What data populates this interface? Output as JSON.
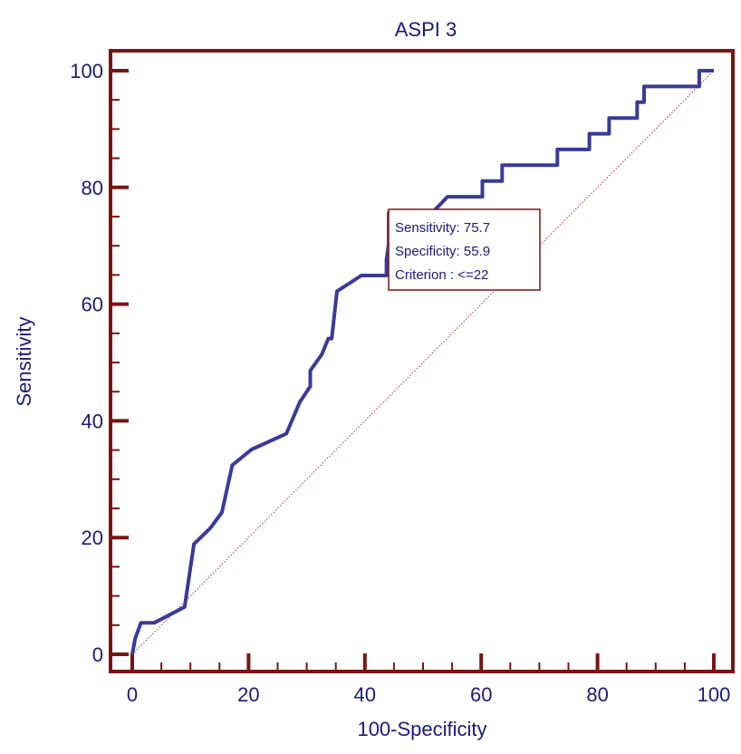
{
  "chart_data": {
    "type": "line",
    "title": "ASPI 3",
    "xlabel": "100-Specificity",
    "ylabel": "Sensitivity",
    "xlim": [
      0,
      100
    ],
    "ylim": [
      0,
      100
    ],
    "xticks": [
      0,
      20,
      40,
      60,
      80,
      100
    ],
    "yticks": [
      0,
      20,
      40,
      60,
      80,
      100
    ],
    "grid": false,
    "series": [
      {
        "values": [
          [
            0,
            0
          ],
          [
            0.5,
            2.7
          ],
          [
            1.5,
            5.4
          ],
          [
            3.8,
            5.4
          ],
          [
            9,
            8.1
          ],
          [
            10.6,
            18.9
          ],
          [
            13.4,
            21.6
          ],
          [
            15.4,
            24.3
          ],
          [
            17.2,
            32.4
          ],
          [
            20.5,
            35.1
          ],
          [
            26.5,
            37.8
          ],
          [
            28.8,
            43.2
          ],
          [
            30.6,
            45.9
          ],
          [
            30.6,
            48.6
          ],
          [
            32.6,
            51.4
          ],
          [
            33.7,
            54.1
          ],
          [
            34.3,
            54.1
          ],
          [
            35.2,
            62.2
          ],
          [
            39.4,
            64.9
          ],
          [
            43.7,
            64.9
          ],
          [
            43.7,
            67.6
          ],
          [
            44.1,
            70.3
          ],
          [
            44.1,
            75.7
          ],
          [
            51.6,
            75.7
          ],
          [
            54.2,
            78.4
          ],
          [
            60.2,
            78.4
          ],
          [
            60.2,
            81.1
          ],
          [
            63.6,
            81.1
          ],
          [
            63.6,
            83.8
          ],
          [
            73.1,
            83.8
          ],
          [
            73.1,
            86.5
          ],
          [
            78.6,
            86.5
          ],
          [
            78.6,
            89.2
          ],
          [
            82,
            89.2
          ],
          [
            82,
            91.9
          ],
          [
            86.8,
            91.9
          ],
          [
            86.8,
            94.6
          ],
          [
            88,
            94.6
          ],
          [
            88,
            97.3
          ],
          [
            97.5,
            97.3
          ],
          [
            97.5,
            100
          ],
          [
            100,
            100
          ]
        ]
      }
    ],
    "reference_line": [
      [
        0,
        0
      ],
      [
        100,
        100
      ]
    ],
    "annotation": {
      "sensitivity": "Sensitivity: 75.7",
      "specificity": "Specificity: 55.9",
      "criterion": "Criterion : <=22"
    },
    "colors": {
      "curve": "#3a3a9a",
      "frame": "#7a1414",
      "reference": "#b03030",
      "text": "#1a1a7a"
    }
  }
}
